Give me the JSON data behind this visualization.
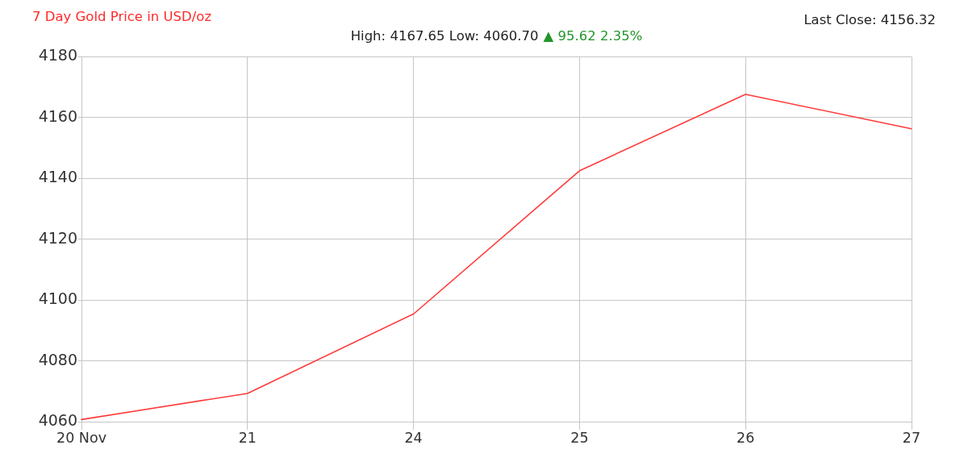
{
  "chart_data": {
    "type": "line",
    "title": "7 Day Gold Price in USD/oz",
    "subtitle": "High: 4167.65 Low: 4060.70",
    "annotations": [
      "▲ 95.62 2.35%",
      "Last Close: 4156.32"
    ],
    "categories": [
      "20 Nov",
      "21",
      "24",
      "25",
      "26",
      "27"
    ],
    "values": [
      4060.7,
      4069.3,
      4095.4,
      4142.5,
      4167.65,
      4156.32
    ],
    "color": "#ff3b3b",
    "ylim": [
      4060,
      4180
    ],
    "yticks": [
      4060,
      4080,
      4100,
      4120,
      4140,
      4160,
      4180
    ],
    "grid": true,
    "legend": false,
    "marker": "none",
    "line_style": "solid"
  }
}
